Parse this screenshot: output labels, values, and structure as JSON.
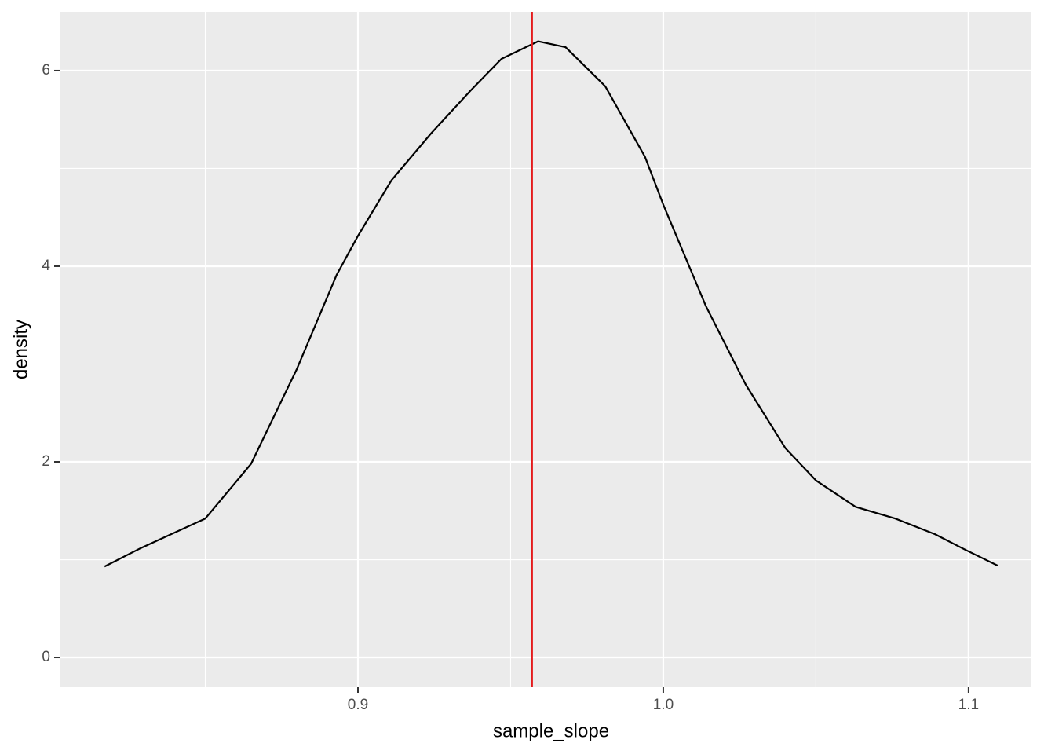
{
  "chart_data": {
    "type": "line",
    "x_label": "sample_slope",
    "y_label": "density",
    "x": [
      0.817,
      0.829,
      0.85,
      0.865,
      0.88,
      0.893,
      0.9,
      0.911,
      0.924,
      0.937,
      0.947,
      0.959,
      0.968,
      0.981,
      0.994,
      1.0,
      1.014,
      1.027,
      1.04,
      1.05,
      1.063,
      1.076,
      1.089,
      1.099,
      1.1095
    ],
    "series": [
      {
        "color": "#000000",
        "values": [
          0.93,
          1.12,
          1.42,
          1.98,
          2.95,
          3.91,
          4.31,
          4.88,
          5.36,
          5.8,
          6.12,
          6.3,
          6.24,
          5.84,
          5.12,
          4.63,
          3.59,
          2.79,
          2.14,
          1.81,
          1.54,
          1.42,
          1.26,
          1.1,
          0.94
        ]
      }
    ],
    "vline": {
      "value": 0.957,
      "color": "#e41a1c"
    },
    "xlim": [
      0.8023,
      1.1206
    ],
    "ylim": [
      -0.305,
      6.602
    ],
    "xticks": [
      0.9,
      {
        "value": 1,
        "label": "1.0"
      },
      1.1
    ],
    "yticks": [
      0,
      2,
      4,
      6
    ],
    "x_minor_grid": [
      0.85,
      0.95,
      1.05
    ],
    "y_minor_grid": [
      1,
      3,
      5
    ],
    "grid": true
  }
}
